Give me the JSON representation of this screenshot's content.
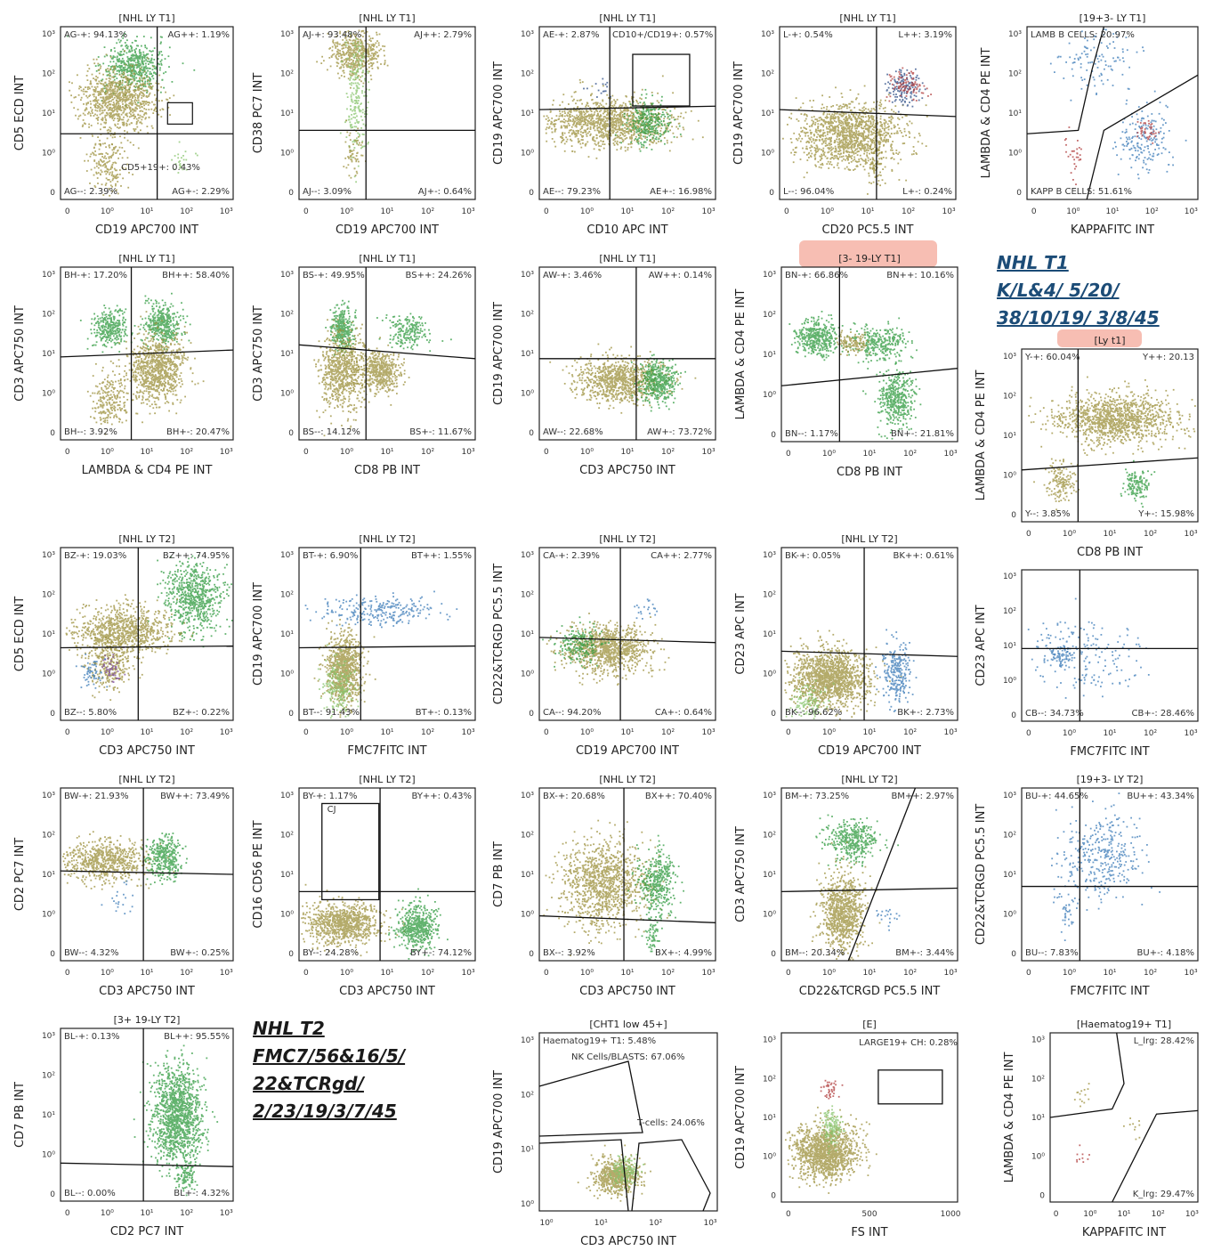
{
  "colors": {
    "olive": "#9b8f3a",
    "green": "#2e9a3e",
    "lightgreen": "#86c46a",
    "blue": "#3a7ab8",
    "darkblue": "#2b4d86",
    "red": "#b03a3a",
    "purple": "#7b4a9b",
    "highlight": "#f4a89a"
  },
  "notes": {
    "t1": [
      "NHL T1",
      "K/L&4/ 5/20/",
      "38/10/19/ 3/8/45"
    ],
    "t2": [
      "NHL T2",
      "FMC7/56&16/5/",
      "22&TCRgd/",
      "2/23/19/3/7/45"
    ]
  },
  "chart_data": [
    {
      "id": "p1",
      "type": "scatter",
      "title": "[NHL LY T1]",
      "xlabel": "CD19 APC700 INT",
      "ylabel": "CD5 ECD INT",
      "xticks": [
        "0",
        "10⁰",
        "10¹",
        "10²",
        "10³"
      ],
      "yticks": [
        "0",
        "10⁰",
        "10¹",
        "10²",
        "10³"
      ],
      "quadrants": {
        "UL": "AG-+: 94.13%",
        "UR": "AG++: 1.19%",
        "LL": "AG--: 2.39%",
        "LR": "AG+-: 2.29%"
      },
      "gates": [
        {
          "label": "CD5+19+: 0.43%"
        }
      ]
    },
    {
      "id": "p2",
      "type": "scatter",
      "title": "[NHL LY T1]",
      "xlabel": "CD19 APC700 INT",
      "ylabel": "CD38 PC7 INT",
      "xticks": [
        "0",
        "10⁰",
        "10¹",
        "10²",
        "10³"
      ],
      "yticks": [
        "0",
        "10⁰",
        "10¹",
        "10²",
        "10³"
      ],
      "quadrants": {
        "UL": "AJ-+: 93.48%",
        "UR": "AJ++: 2.79%",
        "LL": "AJ--: 3.09%",
        "LR": "AJ+-: 0.64%"
      }
    },
    {
      "id": "p3",
      "type": "scatter",
      "title": "[NHL LY T1]",
      "xlabel": "CD10 APC INT",
      "ylabel": "CD19 APC700 INT",
      "xticks": [
        "0",
        "10⁰",
        "10¹",
        "10²",
        "10³"
      ],
      "yticks": [
        "0",
        "10⁰",
        "10¹",
        "10²",
        "10³"
      ],
      "quadrants": {
        "UL": "AE-+: 2.87%",
        "UR": "",
        "LL": "AE--: 79.23%",
        "LR": "AE+-: 16.98%"
      },
      "gates": [
        {
          "label": "CD10+/CD19+: 0.57%"
        }
      ]
    },
    {
      "id": "p4",
      "type": "scatter",
      "title": "[NHL LY T1]",
      "xlabel": "CD20 PC5.5 INT",
      "ylabel": "CD19 APC700 INT",
      "xticks": [
        "0",
        "10⁰",
        "10¹",
        "10²",
        "10³"
      ],
      "yticks": [
        "0",
        "10⁰",
        "10¹",
        "10²",
        "10³"
      ],
      "quadrants": {
        "UL": "L-+: 0.54%",
        "UR": "L++: 3.19%",
        "LL": "L--: 96.04%",
        "LR": "L+-: 0.24%"
      }
    },
    {
      "id": "p5",
      "type": "scatter",
      "title": "[19+3- LY T1]",
      "xlabel": "KAPPAFITC INT",
      "ylabel": "LAMBDA & CD4 PE INT",
      "xticks": [
        "0",
        "10⁰",
        "10¹",
        "10²",
        "10³"
      ],
      "yticks": [
        "0",
        "10⁰",
        "10¹",
        "10²",
        "10³"
      ],
      "quadrants": {
        "UL": "LAMB  B CELLS: 20.97%",
        "UR": "",
        "LL": "KAPP  B CELLS: 51.61%",
        "LR": ""
      }
    },
    {
      "id": "p6",
      "type": "scatter",
      "title": "[NHL LY T1]",
      "xlabel": "LAMBDA & CD4 PE INT",
      "ylabel": "CD3 APC750 INT",
      "xticks": [
        "0",
        "10⁰",
        "10¹",
        "10²",
        "10³"
      ],
      "yticks": [
        "0",
        "10⁰",
        "10¹",
        "10²",
        "10³"
      ],
      "quadrants": {
        "UL": "BH-+: 17.20%",
        "UR": "BH++: 58.40%",
        "LL": "BH--: 3.92%",
        "LR": "BH+-: 20.47%"
      }
    },
    {
      "id": "p7",
      "type": "scatter",
      "title": "[NHL LY T1]",
      "xlabel": "CD8 PB INT",
      "ylabel": "CD3 APC750 INT",
      "xticks": [
        "0",
        "10⁰",
        "10¹",
        "10²",
        "10³"
      ],
      "yticks": [
        "0",
        "10⁰",
        "10¹",
        "10²",
        "10³"
      ],
      "quadrants": {
        "UL": "BS-+: 49.95%",
        "UR": "BS++: 24.26%",
        "LL": "BS--: 14.12%",
        "LR": "BS+-: 11.67%"
      }
    },
    {
      "id": "p8",
      "type": "scatter",
      "title": "[NHL LY T1]",
      "xlabel": "CD3 APC750 INT",
      "ylabel": "CD19 APC700 INT",
      "xticks": [
        "0",
        "10⁰",
        "10¹",
        "10²",
        "10³"
      ],
      "yticks": [
        "0",
        "10⁰",
        "10¹",
        "10²",
        "10³"
      ],
      "quadrants": {
        "UL": "AW-+: 3.46%",
        "UR": "AW++: 0.14%",
        "LL": "AW--: 22.68%",
        "LR": "AW+-: 73.72%"
      }
    },
    {
      "id": "p9",
      "type": "scatter",
      "title": "[3- 19-LY T1]",
      "xlabel": "CD8 PB INT",
      "ylabel": "LAMBDA & CD4 PE INT",
      "xticks": [
        "0",
        "10⁰",
        "10¹",
        "10²",
        "10³"
      ],
      "yticks": [
        "0",
        "10⁰",
        "10¹",
        "10²",
        "10³"
      ],
      "quadrants": {
        "UL": "BN-+: 66.86%",
        "UR": "BN++: 10.16%",
        "LL": "BN--: 1.17%",
        "LR": "BN+-: 21.81%"
      }
    },
    {
      "id": "p10",
      "type": "scatter",
      "title": "[Ly t1]",
      "xlabel": "CD8 PB INT",
      "ylabel": "LAMBDA & CD4 PE INT",
      "xticks": [
        "0",
        "10⁰",
        "10¹",
        "10²",
        "10³"
      ],
      "yticks": [
        "0",
        "10⁰",
        "10¹",
        "10²",
        "10³"
      ],
      "quadrants": {
        "UL": "Y-+: 60.04%",
        "UR": "Y++: 20.13",
        "LL": "Y--: 3.85%",
        "LR": "Y+-: 15.98%"
      }
    },
    {
      "id": "p11",
      "type": "scatter",
      "title": "[NHL LY T2]",
      "xlabel": "CD3 APC750 INT",
      "ylabel": "CD5 ECD INT",
      "xticks": [
        "0",
        "10⁰",
        "10¹",
        "10²",
        "10³"
      ],
      "yticks": [
        "0",
        "10⁰",
        "10¹",
        "10²",
        "10³"
      ],
      "quadrants": {
        "UL": "BZ-+: 19.03%",
        "UR": "BZ++: 74.95%",
        "LL": "BZ--: 5.80%",
        "LR": "BZ+-: 0.22%"
      }
    },
    {
      "id": "p12",
      "type": "scatter",
      "title": "[NHL LY T2]",
      "xlabel": "FMC7FITC INT",
      "ylabel": "CD19 APC700 INT",
      "xticks": [
        "0",
        "10⁰",
        "10¹",
        "10²",
        "10³"
      ],
      "yticks": [
        "0",
        "10⁰",
        "10¹",
        "10²",
        "10³"
      ],
      "quadrants": {
        "UL": "BT-+: 6.90%",
        "UR": "BT++: 1.55%",
        "LL": "BT--: 91.43%",
        "LR": "BT+-: 0.13%"
      }
    },
    {
      "id": "p13",
      "type": "scatter",
      "title": "[NHL LY T2]",
      "xlabel": "CD19 APC700 INT",
      "ylabel": "CD22&TCRGD PC5.5 INT",
      "xticks": [
        "0",
        "10⁰",
        "10¹",
        "10²",
        "10³"
      ],
      "yticks": [
        "0",
        "10⁰",
        "10¹",
        "10²",
        "10³"
      ],
      "quadrants": {
        "UL": "CA-+: 2.39%",
        "UR": "CA++: 2.77%",
        "LL": "CA--: 94.20%",
        "LR": "CA+-: 0.64%"
      }
    },
    {
      "id": "p14",
      "type": "scatter",
      "title": "[NHL LY T2]",
      "xlabel": "CD19 APC700 INT",
      "ylabel": "CD23 APC INT",
      "xticks": [
        "0",
        "10⁰",
        "10¹",
        "10²",
        "10³"
      ],
      "yticks": [
        "0",
        "10⁰",
        "10¹",
        "10²",
        "10³"
      ],
      "quadrants": {
        "UL": "BK-+: 0.05%",
        "UR": "BK++: 0.61%",
        "LL": "BK--: 96.62%",
        "LR": "BK+-: 2.73%"
      }
    },
    {
      "id": "p15",
      "type": "scatter",
      "title": "",
      "xlabel": "FMC7FITC INT",
      "ylabel": "CD23 APC INT",
      "xticks": [
        "0",
        "10⁰",
        "10¹",
        "10²",
        "10³"
      ],
      "yticks": [
        "0",
        "10⁰",
        "10¹",
        "10²",
        "10³"
      ],
      "quadrants": {
        "UL": "",
        "UR": "",
        "LL": "CB--: 34.73%",
        "LR": "CB+-: 28.46%"
      }
    },
    {
      "id": "p16",
      "type": "scatter",
      "title": "[NHL LY T2]",
      "xlabel": "CD3 APC750 INT",
      "ylabel": "CD2 PC7 INT",
      "xticks": [
        "0",
        "10⁰",
        "10¹",
        "10²",
        "10³"
      ],
      "yticks": [
        "0",
        "10⁰",
        "10¹",
        "10²",
        "10³"
      ],
      "quadrants": {
        "UL": "BW-+: 21.93%",
        "UR": "BW++: 73.49%",
        "LL": "BW--: 4.32%",
        "LR": "BW+-: 0.25%"
      }
    },
    {
      "id": "p17",
      "type": "scatter",
      "title": "[NHL LY T2]",
      "xlabel": "CD3 APC750 INT",
      "ylabel": "CD16 CD56 PE INT",
      "xticks": [
        "0",
        "10⁰",
        "10¹",
        "10²",
        "10³"
      ],
      "yticks": [
        "0",
        "10⁰",
        "10¹",
        "10²",
        "10³"
      ],
      "quadrants": {
        "UL": "BY-+: 1.17%",
        "UR": "BY++: 0.43%",
        "LL": "BY--: 24.28%",
        "LR": "BY+-: 74.12%"
      },
      "gates": [
        {
          "label": "CJ"
        }
      ]
    },
    {
      "id": "p18",
      "type": "scatter",
      "title": "[NHL LY T2]",
      "xlabel": "CD3 APC750 INT",
      "ylabel": "CD7 PB INT",
      "xticks": [
        "0",
        "10⁰",
        "10¹",
        "10²",
        "10³"
      ],
      "yticks": [
        "0",
        "10⁰",
        "10¹",
        "10²",
        "10³"
      ],
      "quadrants": {
        "UL": "BX-+: 20.68%",
        "UR": "BX++: 70.40%",
        "LL": "BX--: 3.92%",
        "LR": "BX+-: 4.99%"
      }
    },
    {
      "id": "p19",
      "type": "scatter",
      "title": "[NHL LY T2]",
      "xlabel": "CD22&TCRGD PC5.5 INT",
      "ylabel": "CD3 APC750 INT",
      "xticks": [
        "0",
        "10⁰",
        "10¹",
        "10²",
        "10³"
      ],
      "yticks": [
        "0",
        "10⁰",
        "10¹",
        "10²",
        "10³"
      ],
      "quadrants": {
        "UL": "BM-+: 73.25%",
        "UR": "BM++: 2.97%",
        "LL": "BM--: 20.34%",
        "LR": "BM+-: 3.44%"
      }
    },
    {
      "id": "p20",
      "type": "scatter",
      "title": "[19+3- LY T2]",
      "xlabel": "FMC7FITC INT",
      "ylabel": "CD22&TCRGD PC5.5 INT",
      "xticks": [
        "0",
        "10⁰",
        "10¹",
        "10²",
        "10³"
      ],
      "yticks": [
        "0",
        "10⁰",
        "10¹",
        "10²",
        "10³"
      ],
      "quadrants": {
        "UL": "BU-+: 44.65%",
        "UR": "BU++: 43.34%",
        "LL": "BU--: 7.83%",
        "LR": "BU+-: 4.18%"
      }
    },
    {
      "id": "p21",
      "type": "scatter",
      "title": "[3+ 19-LY T2]",
      "xlabel": "CD2 PC7 INT",
      "ylabel": "CD7 PB INT",
      "xticks": [
        "0",
        "10⁰",
        "10¹",
        "10²",
        "10³"
      ],
      "yticks": [
        "0",
        "10⁰",
        "10¹",
        "10²",
        "10³"
      ],
      "quadrants": {
        "UL": "BL-+: 0.13%",
        "UR": "BL++: 95.55%",
        "LL": "BL--: 0.00%",
        "LR": "BL+-: 4.32%"
      }
    },
    {
      "id": "p22",
      "type": "scatter",
      "title": "[CHT1 low 45+]",
      "xlabel": "CD3 APC750 INT",
      "ylabel": "CD19 APC700 INT",
      "xticks": [
        "10⁰",
        "10¹",
        "10²",
        "10³"
      ],
      "yticks": [
        "10⁰",
        "10¹",
        "10²",
        "10³"
      ],
      "quadrants": {
        "UL": "",
        "UR": "",
        "LL": "",
        "LR": ""
      },
      "gates": [
        {
          "label": "Haematog19+ T1: 5.48%"
        },
        {
          "label": "NK Cells/BLASTS: 67.06%"
        },
        {
          "label": "T-cells: 24.06%"
        }
      ]
    },
    {
      "id": "p23",
      "type": "scatter",
      "title": "[E]",
      "xlabel": "FS INT",
      "ylabel": "CD19 APC700 INT",
      "xticks": [
        "0",
        "500",
        "1000"
      ],
      "yticks": [
        "0",
        "10⁰",
        "10¹",
        "10²",
        "10³"
      ],
      "quadrants": {
        "UL": "",
        "UR": "",
        "LL": "",
        "LR": ""
      },
      "gates": [
        {
          "label": "LARGE19+ CH: 0.28%"
        }
      ]
    },
    {
      "id": "p24",
      "type": "scatter",
      "title": "[Haematog19+ T1]",
      "xlabel": "KAPPAFITC INT",
      "ylabel": "LAMBDA & CD4 PE INT",
      "xticks": [
        "0",
        "10⁰",
        "10¹",
        "10²",
        "10³"
      ],
      "yticks": [
        "0",
        "10⁰",
        "10¹",
        "10²",
        "10³"
      ],
      "quadrants": {
        "UL": "",
        "UR": "L_lrg: 28.42%",
        "LL": "",
        "LR": "K_lrg: 29.47%"
      }
    }
  ]
}
